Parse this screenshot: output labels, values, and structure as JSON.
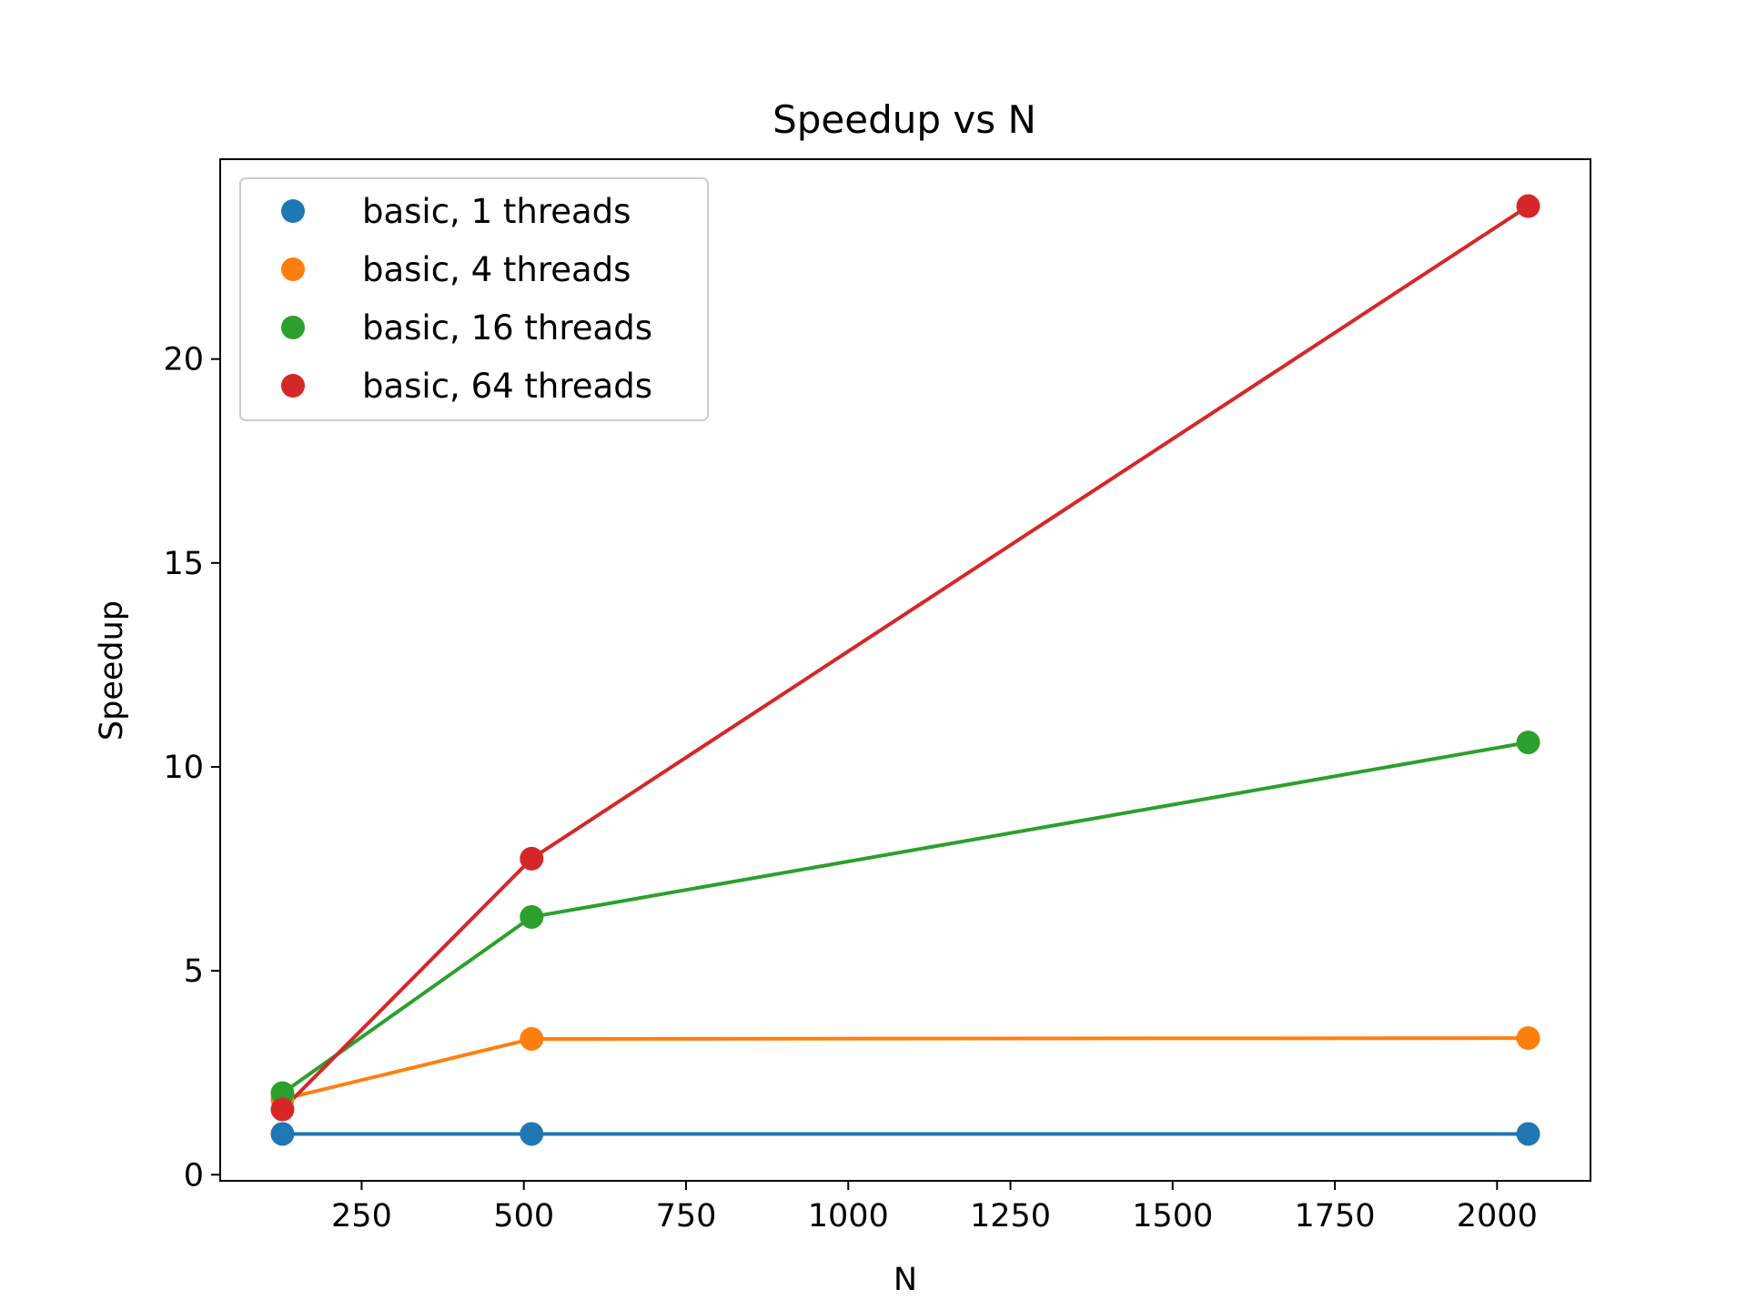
{
  "chart_data": {
    "type": "line",
    "title": "Speedup vs N",
    "xlabel": "N",
    "ylabel": "Speedup",
    "x": [
      128,
      512,
      2048
    ],
    "xlim": [
      32,
      2144
    ],
    "ylim": [
      -0.15,
      24.9
    ],
    "xticks": [
      250,
      500,
      750,
      1000,
      1250,
      1500,
      1750,
      2000
    ],
    "yticks": [
      0,
      5,
      10,
      15,
      20
    ],
    "grid": false,
    "legend_position": "top-left",
    "series": [
      {
        "name": "basic, 1 threads",
        "color": "#1f77b4",
        "values": [
          1.0,
          1.0,
          1.0
        ]
      },
      {
        "name": "basic, 4 threads",
        "color": "#ff7f0e",
        "values": [
          1.85,
          3.33,
          3.35
        ]
      },
      {
        "name": "basic, 16 threads",
        "color": "#2ca02c",
        "values": [
          2.0,
          6.32,
          10.6
        ]
      },
      {
        "name": "basic, 64 threads",
        "color": "#d62728",
        "values": [
          1.6,
          7.75,
          23.75
        ]
      }
    ]
  }
}
